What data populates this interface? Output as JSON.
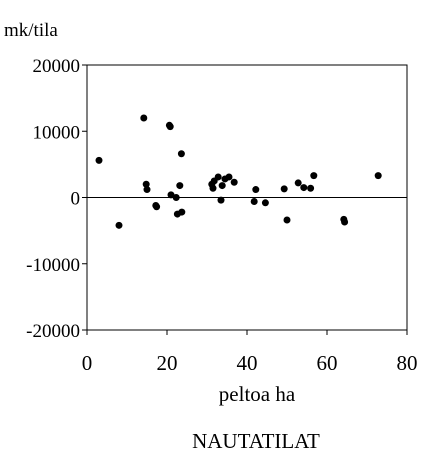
{
  "chart_data": {
    "type": "scatter",
    "title": "",
    "ylabel": "mk/tila",
    "xlabel": "peltoa ha",
    "caption": "NAUTATILAT",
    "xlim": [
      0,
      80
    ],
    "ylim": [
      -20000,
      20000
    ],
    "x_ticks": [
      0,
      20,
      40,
      60,
      80
    ],
    "y_ticks": [
      20000,
      10000,
      0,
      -10000,
      -20000
    ],
    "x_tick_labels": [
      "0",
      "20",
      "40",
      "60",
      "80"
    ],
    "y_tick_labels": [
      "20000",
      "10000",
      "0",
      "-10000",
      "-20000"
    ],
    "zero_line": true,
    "grid": false,
    "marker_color": "#000000",
    "series": [
      {
        "points": [
          {
            "x": 3,
            "y": 5600
          },
          {
            "x": 8,
            "y": -4200
          },
          {
            "x": 14.2,
            "y": 12000
          },
          {
            "x": 14.8,
            "y": 2000
          },
          {
            "x": 15,
            "y": 1200
          },
          {
            "x": 17.2,
            "y": -1200
          },
          {
            "x": 17.4,
            "y": -1400
          },
          {
            "x": 20.6,
            "y": 10900
          },
          {
            "x": 20.8,
            "y": 10700
          },
          {
            "x": 21,
            "y": 400
          },
          {
            "x": 22.3,
            "y": 0
          },
          {
            "x": 22.6,
            "y": -2500
          },
          {
            "x": 23.2,
            "y": 1800
          },
          {
            "x": 23.6,
            "y": 6600
          },
          {
            "x": 23.7,
            "y": -2200
          },
          {
            "x": 31.2,
            "y": 2000
          },
          {
            "x": 31.5,
            "y": 1400
          },
          {
            "x": 31.8,
            "y": 2500
          },
          {
            "x": 32.8,
            "y": 3100
          },
          {
            "x": 33.5,
            "y": -400
          },
          {
            "x": 33.8,
            "y": 1800
          },
          {
            "x": 34.5,
            "y": 2800
          },
          {
            "x": 35.5,
            "y": 3100
          },
          {
            "x": 36.8,
            "y": 2300
          },
          {
            "x": 41.8,
            "y": -600
          },
          {
            "x": 42.2,
            "y": 1200
          },
          {
            "x": 44.6,
            "y": -800
          },
          {
            "x": 49.3,
            "y": 1300
          },
          {
            "x": 50,
            "y": -3400
          },
          {
            "x": 52.8,
            "y": 2200
          },
          {
            "x": 54.2,
            "y": 1500
          },
          {
            "x": 55.9,
            "y": 1400
          },
          {
            "x": 56.7,
            "y": 3300
          },
          {
            "x": 64.2,
            "y": -3300
          },
          {
            "x": 64.4,
            "y": -3700
          },
          {
            "x": 72.8,
            "y": 3300
          }
        ]
      }
    ]
  }
}
